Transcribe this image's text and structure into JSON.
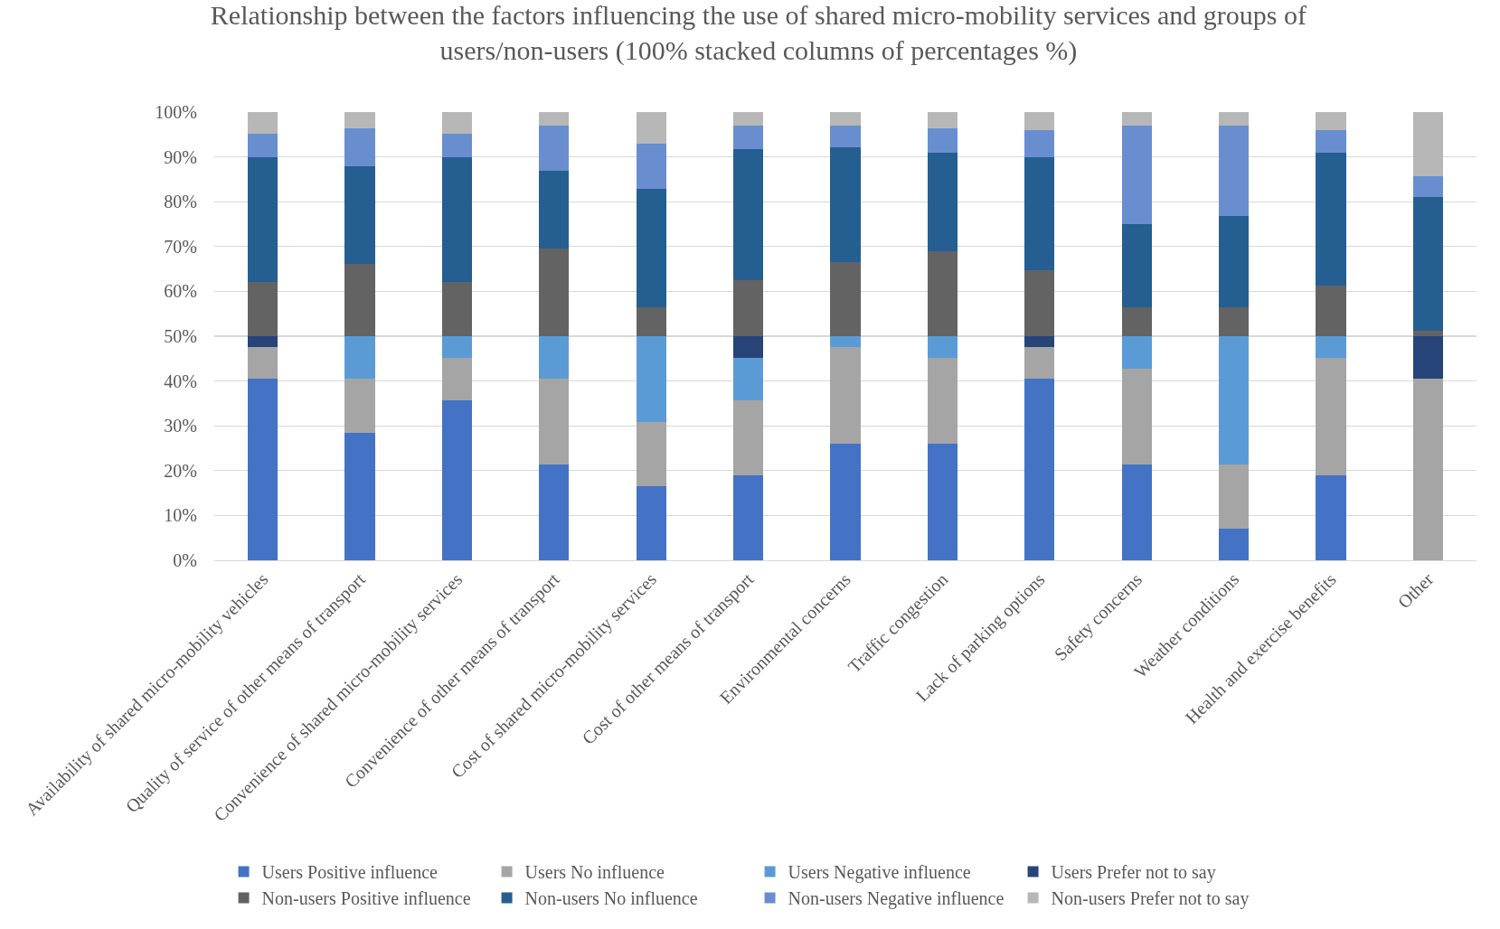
{
  "chart_data": {
    "type": "bar",
    "stacked": true,
    "title": "Relationship between the factors influencing the use of shared micro-mobility services and groups of users/non-users (100% stacked columns of percentages %)",
    "categories": [
      "Availability of shared micro-mobility vehicles",
      "Quality of service of other means of transport",
      "Convenience of shared micro-mobility services",
      "Convenience of other means of transport",
      "Cost of shared micro-mobility services",
      "Cost of other means of transport",
      "Environmental concerns",
      "Traffic congestion",
      "Lack of parking options",
      "Safety concerns",
      "Weather conditions",
      "Health and exercise benefits",
      "Other"
    ],
    "series": [
      {
        "name": "Users Positive influence",
        "color": "#4472c4",
        "values": [
          40.5,
          28.4,
          35.7,
          21.3,
          16.5,
          19.0,
          26.1,
          26.1,
          40.5,
          21.3,
          7.0,
          19.0,
          0
        ]
      },
      {
        "name": "Users No influence",
        "color": "#a5a5a5",
        "values": [
          7.1,
          12.1,
          9.5,
          19.2,
          14.3,
          16.7,
          21.5,
          19.1,
          7.1,
          21.5,
          14.3,
          26.2,
          40.5
        ]
      },
      {
        "name": "Users Negative influence",
        "color": "#5b9bd5",
        "values": [
          0,
          9.5,
          4.8,
          9.5,
          19.2,
          9.5,
          2.4,
          4.8,
          0,
          7.2,
          28.7,
          4.8,
          0
        ]
      },
      {
        "name": "Users Prefer not to say",
        "color": "#264478",
        "values": [
          2.4,
          0,
          0,
          0,
          0,
          4.8,
          0,
          0,
          2.4,
          0,
          0,
          0,
          9.5
        ]
      },
      {
        "name": "Non-users Positive influence",
        "color": "#636363",
        "values": [
          12.0,
          16.1,
          12.0,
          19.6,
          6.5,
          12.5,
          16.6,
          19.0,
          14.8,
          6.5,
          6.5,
          11.3,
          1.2
        ]
      },
      {
        "name": "Non-users No influence",
        "color": "#255e91",
        "values": [
          27.9,
          21.9,
          27.9,
          17.3,
          26.3,
          29.2,
          25.5,
          21.9,
          25.1,
          18.6,
          20.3,
          29.6,
          29.8
        ]
      },
      {
        "name": "Non-users Negative influence",
        "color": "#698ed0",
        "values": [
          5.3,
          8.4,
          5.3,
          10.1,
          10.1,
          5.2,
          4.8,
          5.5,
          6.0,
          21.8,
          20.1,
          5.0,
          4.6
        ]
      },
      {
        "name": "Non-users Prefer not to say",
        "color": "#b7b7b7",
        "values": [
          4.8,
          3.6,
          4.8,
          3.0,
          7.1,
          3.1,
          3.1,
          3.6,
          4.1,
          3.1,
          3.1,
          4.1,
          14.4
        ]
      }
    ],
    "ylim": [
      0,
      100
    ],
    "yticks": [
      {
        "value": 0,
        "label": "0%"
      },
      {
        "value": 10,
        "label": "10%"
      },
      {
        "value": 20,
        "label": "20%"
      },
      {
        "value": 30,
        "label": "30%"
      },
      {
        "value": 40,
        "label": "40%"
      },
      {
        "value": 50,
        "label": "50%"
      },
      {
        "value": 60,
        "label": "60%"
      },
      {
        "value": 70,
        "label": "70%"
      },
      {
        "value": 80,
        "label": "80%"
      },
      {
        "value": 90,
        "label": "90%"
      },
      {
        "value": 100,
        "label": "100%"
      }
    ],
    "grid": "y",
    "legend": "bottom"
  }
}
